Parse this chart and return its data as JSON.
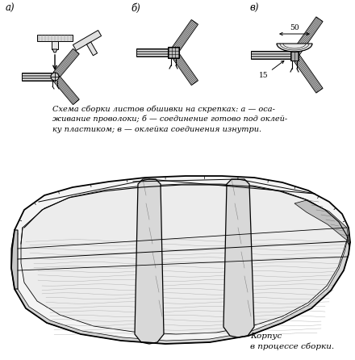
{
  "background_color": "#ffffff",
  "caption_text": "Схема сборки листов обшивки на скрепках: а — оса-\nживание проволоки; б — соединение готово под оклей-\nку пластиком; в — оклейка соединения изнутри.",
  "bottom_caption": "Корпус\nв процессе сборки.",
  "label_a": "а)",
  "label_b": "б)",
  "label_v": "в)",
  "dim_50": "50",
  "dim_15": "15",
  "line_color": "#000000",
  "fig_width": 4.4,
  "fig_height": 4.46,
  "dpi": 100
}
